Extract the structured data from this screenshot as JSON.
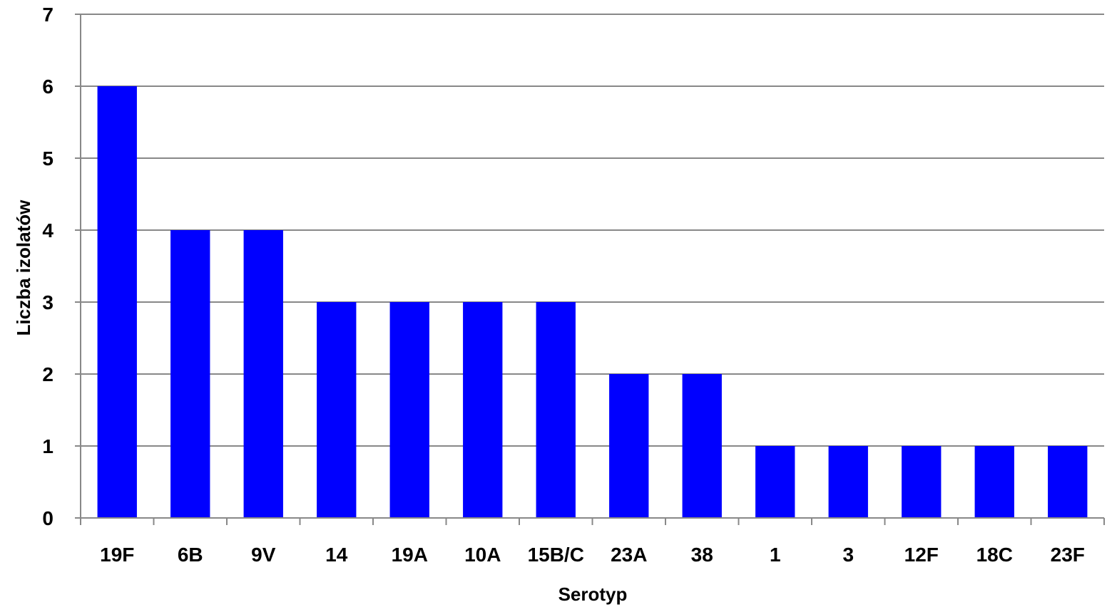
{
  "chart_data": {
    "type": "bar",
    "title": "",
    "xlabel": "Serotyp",
    "ylabel": "Liczba izolatów",
    "categories": [
      "19F",
      "6B",
      "9V",
      "14",
      "19A",
      "10A",
      "15B/C",
      "23A",
      "38",
      "1",
      "3",
      "12F",
      "18C",
      "23F"
    ],
    "values": [
      6,
      4,
      4,
      3,
      3,
      3,
      3,
      2,
      2,
      1,
      1,
      1,
      1,
      1
    ],
    "ylim": [
      0,
      7
    ],
    "yticks": [
      0,
      1,
      2,
      3,
      4,
      5,
      6,
      7
    ],
    "grid": true,
    "legend": "none",
    "colors": {
      "bar": "#0000ff",
      "grid": "#888888",
      "axis": "#888888"
    }
  }
}
